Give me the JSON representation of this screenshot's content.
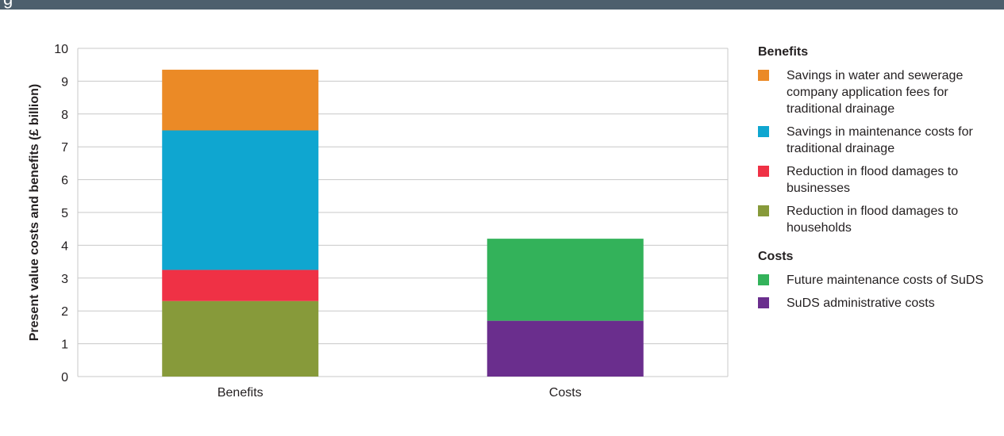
{
  "header": {
    "text": "g"
  },
  "chart_data": {
    "type": "bar",
    "stacked": true,
    "categories": [
      "Benefits",
      "Costs"
    ],
    "ylabel": "Present value costs and benefits (£ billion)",
    "ylim": [
      0,
      10
    ],
    "yticks": [
      0,
      1,
      2,
      3,
      4,
      5,
      6,
      7,
      8,
      9,
      10
    ],
    "grid": true,
    "series": [
      {
        "name": "Reduction in flood damages to households",
        "color": "#879a3a",
        "values": [
          2.3,
          0
        ]
      },
      {
        "name": "Reduction in flood damages to businesses",
        "color": "#ef3145",
        "values": [
          0.95,
          0
        ]
      },
      {
        "name": "Savings in maintenance costs for traditional drainage",
        "color": "#0fa6d0",
        "values": [
          4.25,
          0
        ]
      },
      {
        "name": "Savings in water and sewerage company application fees for traditional drainage",
        "color": "#eb8a26",
        "values": [
          1.85,
          0
        ]
      },
      {
        "name": "SuDS administrative costs",
        "color": "#6a2e8d",
        "values": [
          0,
          1.7
        ]
      },
      {
        "name": "Future maintenance costs of SuDS",
        "color": "#33b25a",
        "values": [
          0,
          2.5
        ]
      }
    ]
  },
  "legend": {
    "benefits_heading": "Benefits",
    "benefits_items": [
      {
        "label": "Savings in water and sewerage company application fees for traditional drainage",
        "color": "#eb8a26"
      },
      {
        "label": "Savings in maintenance costs for traditional drainage",
        "color": "#0fa6d0"
      },
      {
        "label": "Reduction in flood damages to businesses",
        "color": "#ef3145"
      },
      {
        "label": "Reduction in flood damages to households",
        "color": "#879a3a"
      }
    ],
    "costs_heading": "Costs",
    "costs_items": [
      {
        "label": "Future maintenance costs of SuDS",
        "color": "#33b25a"
      },
      {
        "label": "SuDS administrative costs",
        "color": "#6a2e8d"
      }
    ]
  }
}
